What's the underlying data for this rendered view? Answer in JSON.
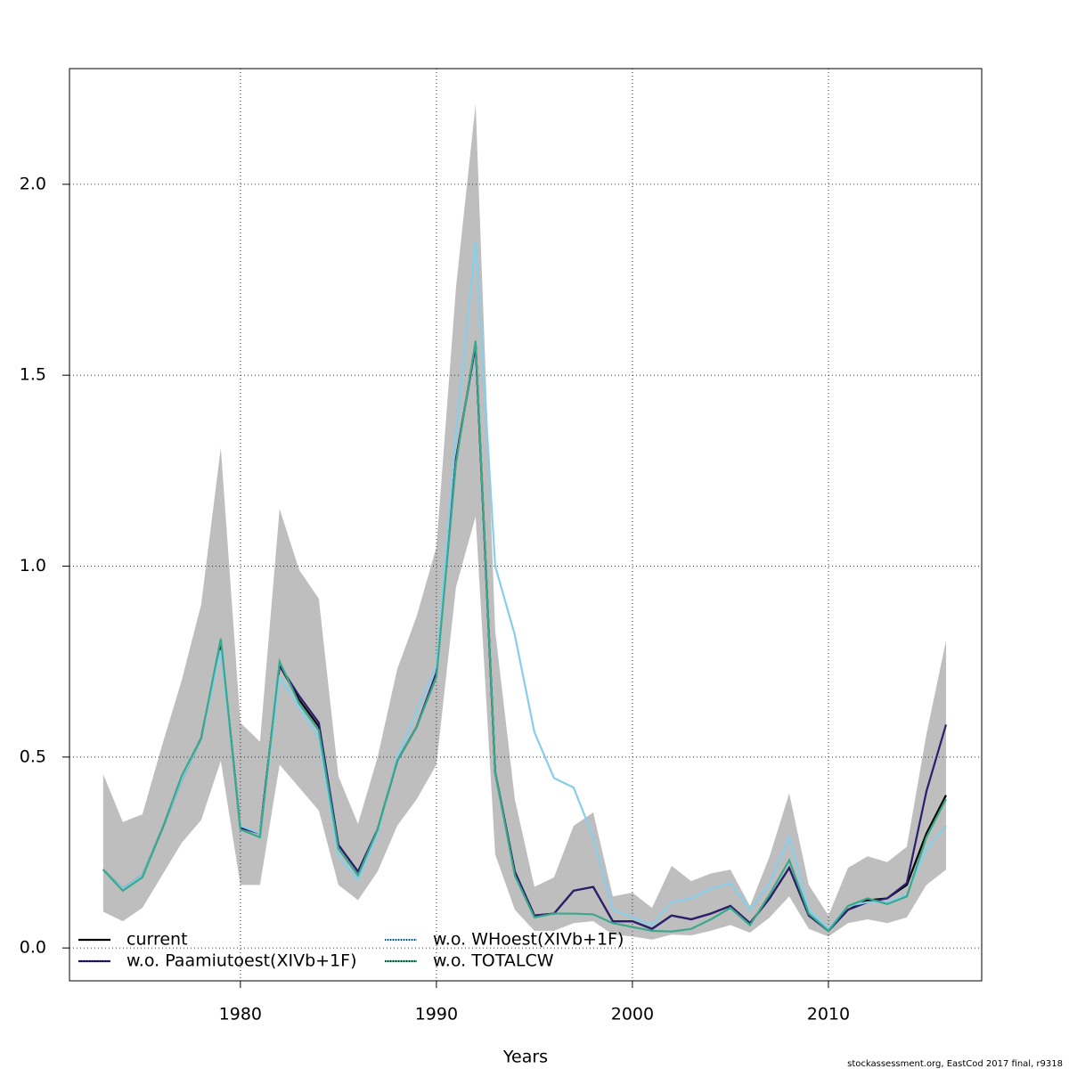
{
  "chart_data": {
    "type": "line",
    "x_label": "Years",
    "footnote": "stockassessment.org, EastCod 2017 final, r9318",
    "x": [
      1973,
      1974,
      1975,
      1976,
      1977,
      1978,
      1979,
      1980,
      1981,
      1982,
      1983,
      1984,
      1985,
      1986,
      1987,
      1988,
      1989,
      1990,
      1991,
      1992,
      1993,
      1994,
      1995,
      1996,
      1997,
      1998,
      1999,
      2000,
      2001,
      2002,
      2003,
      2004,
      2005,
      2006,
      2007,
      2008,
      2009,
      2010,
      2011,
      2012,
      2013,
      2014,
      2015,
      2016
    ],
    "band": {
      "color": "#bebebe",
      "upper": [
        0.455,
        0.33,
        0.35,
        0.53,
        0.7,
        0.9,
        1.31,
        0.59,
        0.54,
        1.15,
        0.99,
        0.915,
        0.45,
        0.325,
        0.5,
        0.73,
        0.87,
        1.05,
        1.73,
        2.21,
        0.83,
        0.39,
        0.16,
        0.185,
        0.32,
        0.355,
        0.135,
        0.145,
        0.105,
        0.215,
        0.175,
        0.195,
        0.205,
        0.11,
        0.24,
        0.405,
        0.165,
        0.085,
        0.21,
        0.24,
        0.225,
        0.265,
        0.56,
        0.805
      ],
      "lower": [
        0.095,
        0.07,
        0.105,
        0.19,
        0.275,
        0.335,
        0.49,
        0.165,
        0.165,
        0.48,
        0.42,
        0.36,
        0.165,
        0.125,
        0.2,
        0.32,
        0.39,
        0.48,
        0.945,
        1.13,
        0.245,
        0.1,
        0.045,
        0.045,
        0.065,
        0.07,
        0.035,
        0.03,
        0.022,
        0.035,
        0.033,
        0.045,
        0.06,
        0.04,
        0.08,
        0.135,
        0.05,
        0.03,
        0.065,
        0.075,
        0.065,
        0.08,
        0.165,
        0.205
      ]
    },
    "series": [
      {
        "name": "current",
        "color": "#000000",
        "values": [
          0.205,
          0.155,
          0.19,
          0.31,
          0.44,
          0.55,
          0.8,
          0.315,
          0.3,
          0.74,
          0.65,
          0.58,
          0.27,
          0.2,
          0.31,
          0.49,
          0.58,
          0.72,
          1.28,
          1.58,
          0.46,
          0.2,
          0.085,
          0.09,
          0.15,
          0.16,
          0.07,
          0.07,
          0.05,
          0.085,
          0.075,
          0.09,
          0.11,
          0.065,
          0.13,
          0.21,
          0.085,
          0.045,
          0.1,
          0.125,
          0.13,
          0.165,
          0.3,
          0.4
        ]
      },
      {
        "name": "w.o. Paamiutoest(XIVb+1F)",
        "color": "#2c1e6e",
        "values": [
          0.205,
          0.155,
          0.19,
          0.31,
          0.44,
          0.55,
          0.8,
          0.315,
          0.3,
          0.74,
          0.66,
          0.59,
          0.27,
          0.2,
          0.31,
          0.49,
          0.58,
          0.72,
          1.28,
          1.58,
          0.46,
          0.2,
          0.085,
          0.09,
          0.15,
          0.16,
          0.07,
          0.07,
          0.05,
          0.085,
          0.075,
          0.09,
          0.11,
          0.065,
          0.13,
          0.21,
          0.085,
          0.045,
          0.1,
          0.12,
          0.13,
          0.17,
          0.41,
          0.585
        ]
      },
      {
        "name": "w.o. WHoest(XIVb+1F)",
        "color": "#87ceeb",
        "values": [
          0.205,
          0.155,
          0.19,
          0.31,
          0.44,
          0.55,
          0.78,
          0.32,
          0.3,
          0.71,
          0.63,
          0.55,
          0.24,
          0.18,
          0.3,
          0.5,
          0.62,
          0.74,
          1.35,
          1.85,
          1.0,
          0.82,
          0.565,
          0.445,
          0.42,
          0.29,
          0.1,
          0.08,
          0.06,
          0.12,
          0.13,
          0.155,
          0.17,
          0.1,
          0.17,
          0.29,
          0.1,
          0.05,
          0.11,
          0.12,
          0.12,
          0.14,
          0.26,
          0.32
        ]
      },
      {
        "name": "w.o. TOTALCW",
        "color": "#3aa88a",
        "values": [
          0.205,
          0.15,
          0.185,
          0.31,
          0.45,
          0.55,
          0.81,
          0.31,
          0.29,
          0.75,
          0.64,
          0.57,
          0.26,
          0.19,
          0.31,
          0.49,
          0.58,
          0.71,
          1.27,
          1.59,
          0.46,
          0.19,
          0.08,
          0.09,
          0.09,
          0.088,
          0.065,
          0.055,
          0.045,
          0.043,
          0.05,
          0.075,
          0.105,
          0.06,
          0.14,
          0.23,
          0.09,
          0.045,
          0.11,
          0.13,
          0.115,
          0.135,
          0.29,
          0.39
        ]
      }
    ],
    "xlim": [
      1971.28,
      2017.82
    ],
    "ylim": [
      -0.086,
      2.303
    ],
    "xticks": [
      1980,
      1990,
      2000,
      2010
    ],
    "yticks": [
      {
        "value": 0,
        "label": "0.0"
      },
      0.5,
      {
        "value": 1,
        "label": "1.0"
      },
      1.5,
      {
        "value": 2,
        "label": "2.0"
      }
    ],
    "grid": true,
    "legend": "bottom-left"
  }
}
